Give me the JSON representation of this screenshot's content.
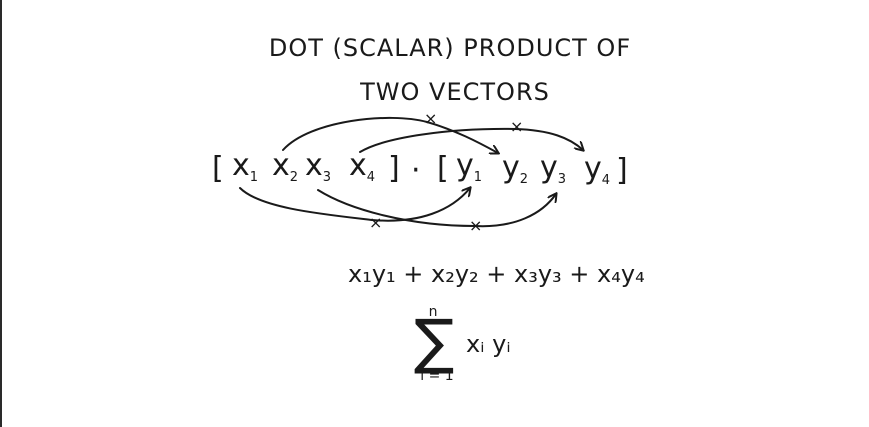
{
  "title": {
    "line1": "DOT (SCALAR) PRODUCT OF",
    "line2": "TWO VECTORS"
  },
  "vectors": {
    "left_bracket": "[",
    "right_bracket": "]",
    "dot": "·",
    "x_terms": [
      {
        "base": "x",
        "sub": "1"
      },
      {
        "base": "x",
        "sub": "2"
      },
      {
        "base": "x",
        "sub": "3"
      },
      {
        "base": "x",
        "sub": "4"
      }
    ],
    "y_terms": [
      {
        "base": "y",
        "sub": "1"
      },
      {
        "base": "y",
        "sub": "2"
      },
      {
        "base": "y",
        "sub": "3"
      },
      {
        "base": "y",
        "sub": "4"
      }
    ]
  },
  "multiply_marks": [
    "×",
    "×",
    "×",
    "×"
  ],
  "expansion": "x₁y₁ + x₂y₂ + x₃y₃ + x₄y₄",
  "summation": {
    "symbol": "∑",
    "upper": "n",
    "lower": "i = 1",
    "body": "xᵢ yᵢ"
  }
}
